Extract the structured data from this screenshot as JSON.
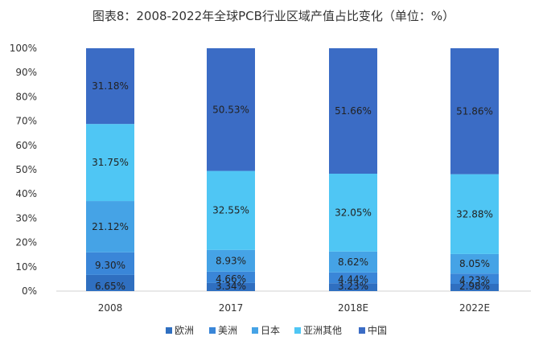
{
  "chart_data": {
    "type": "bar",
    "stacked": true,
    "title": "图表8：2008-2022年全球PCB行业区域产值占比变化（单位：%）",
    "categories": [
      "2008",
      "2017",
      "2018E",
      "2022E"
    ],
    "ylim": [
      0,
      100
    ],
    "yticks": [
      "0%",
      "10%",
      "20%",
      "30%",
      "40%",
      "50%",
      "60%",
      "70%",
      "80%",
      "90%",
      "100%"
    ],
    "legend_position": "bottom",
    "grid": false,
    "series": [
      {
        "name": "欧洲",
        "color": "#2f6fc0",
        "values": [
          6.65,
          3.34,
          3.23,
          2.98
        ],
        "labels": [
          "6.65%",
          "3.34%",
          "3.23%",
          "2.98%"
        ]
      },
      {
        "name": "美洲",
        "color": "#3a86d8",
        "values": [
          9.3,
          4.66,
          4.44,
          4.23
        ],
        "labels": [
          "9.30%",
          "4.66%",
          "4.44%",
          "4.23%"
        ]
      },
      {
        "name": "日本",
        "color": "#45a3e6",
        "values": [
          21.12,
          8.93,
          8.62,
          8.05
        ],
        "labels": [
          "21.12%",
          "8.93%",
          "8.62%",
          "8.05%"
        ]
      },
      {
        "name": "亚洲其他",
        "color": "#4fc6f4",
        "values": [
          31.75,
          32.55,
          32.05,
          32.88
        ],
        "labels": [
          "31.75%",
          "32.55%",
          "32.05%",
          "32.88%"
        ]
      },
      {
        "name": "中国",
        "color": "#3b6cc5",
        "values": [
          31.18,
          50.53,
          51.66,
          51.86
        ],
        "labels": [
          "31.18%",
          "50.53%",
          "51.66%",
          "51.86%"
        ]
      }
    ]
  }
}
